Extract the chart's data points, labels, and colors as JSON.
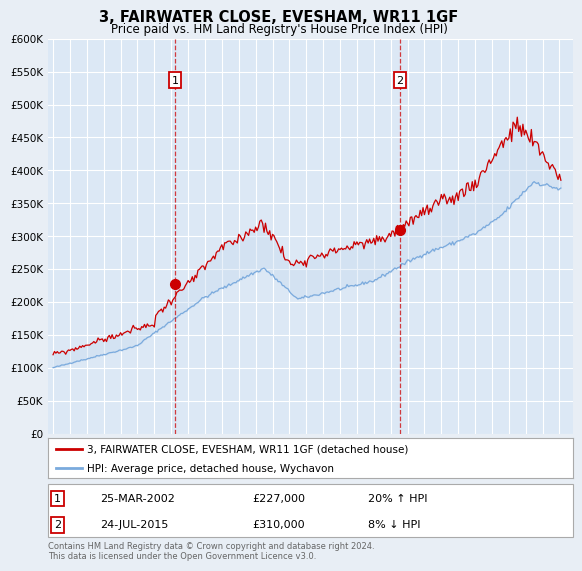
{
  "title": "3, FAIRWATER CLOSE, EVESHAM, WR11 1GF",
  "subtitle": "Price paid vs. HM Land Registry's House Price Index (HPI)",
  "background_color": "#e8eef5",
  "plot_bg_color": "#dce8f5",
  "grid_color": "#ffffff",
  "red_line_color": "#cc0000",
  "blue_line_color": "#7aaadd",
  "fill_color": "#c5d8ee",
  "transactions": [
    {
      "num": 1,
      "date": "25-MAR-2002",
      "price": 227000,
      "hpi_pct": "20%",
      "direction": "↑"
    },
    {
      "num": 2,
      "date": "24-JUL-2015",
      "price": 310000,
      "hpi_pct": "8%",
      "direction": "↓"
    }
  ],
  "transaction_years": [
    2002.23,
    2015.56
  ],
  "transaction_prices": [
    227000,
    310000
  ],
  "ylim": [
    0,
    600000
  ],
  "yticks": [
    0,
    50000,
    100000,
    150000,
    200000,
    250000,
    300000,
    350000,
    400000,
    450000,
    500000,
    550000,
    600000
  ],
  "ytick_labels": [
    "£0",
    "£50K",
    "£100K",
    "£150K",
    "£200K",
    "£250K",
    "£300K",
    "£350K",
    "£400K",
    "£450K",
    "£500K",
    "£550K",
    "£600K"
  ],
  "xlim_start": 1994.7,
  "xlim_end": 2025.8,
  "legend_label_red": "3, FAIRWATER CLOSE, EVESHAM, WR11 1GF (detached house)",
  "legend_label_blue": "HPI: Average price, detached house, Wychavon",
  "footer": "Contains HM Land Registry data © Crown copyright and database right 2024.\nThis data is licensed under the Open Government Licence v3.0.",
  "hpi_seed": 42,
  "prop_seed": 99
}
